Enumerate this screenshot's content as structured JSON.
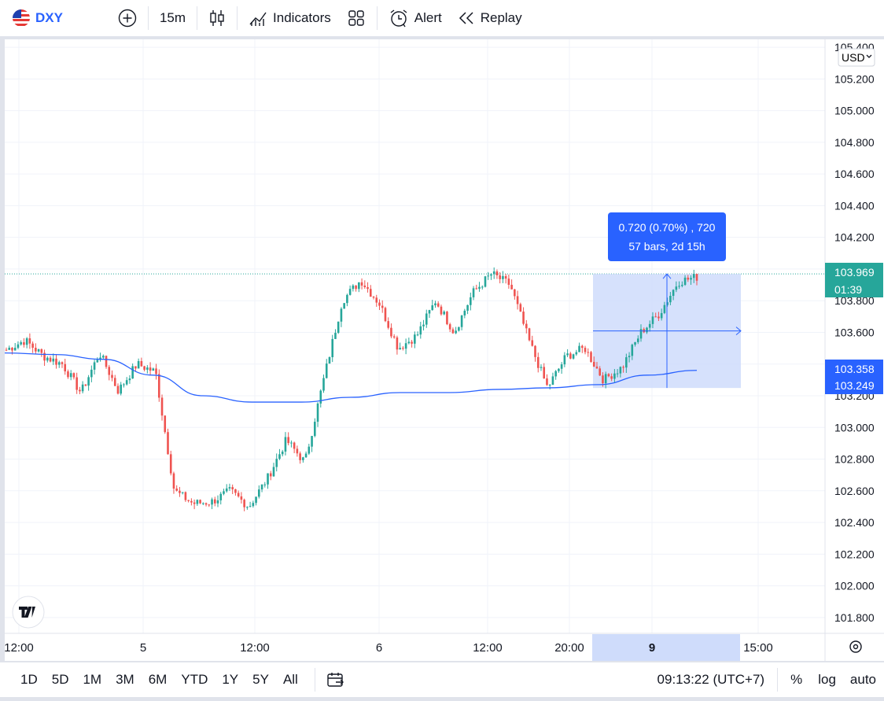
{
  "toolbar": {
    "symbol": "DXY",
    "interval": "15m",
    "indicators_label": "Indicators",
    "alert_label": "Alert",
    "replay_label": "Replay"
  },
  "currency": "USD",
  "price_axis": {
    "ticks": [
      "105.400",
      "105.200",
      "105.000",
      "104.800",
      "104.600",
      "104.400",
      "104.200",
      "104.000",
      "103.800",
      "103.600",
      "103.400",
      "103.200",
      "103.000",
      "102.800",
      "102.600",
      "102.400",
      "102.200",
      "102.000",
      "101.800"
    ],
    "last_price": "103.969",
    "countdown": "01:39",
    "range_high_label": "103.358",
    "range_low_label": "103.249"
  },
  "time_axis": {
    "ticks": [
      "12:00",
      "5",
      "12:00",
      "6",
      "12:00",
      "20:00",
      "9",
      "15:00"
    ]
  },
  "measure": {
    "line1": "0.720 (0.70%) , 720",
    "line2": "57 bars, 2d 15h"
  },
  "bottom": {
    "ranges": [
      "1D",
      "5D",
      "1M",
      "3M",
      "6M",
      "YTD",
      "1Y",
      "5Y",
      "All"
    ],
    "clock": "09:13:22 (UTC+7)",
    "percent": "%",
    "log": "log",
    "auto": "auto"
  },
  "colors": {
    "up": "#26a69a",
    "down": "#ef5350",
    "ma": "#2962ff",
    "accent": "#2962ff",
    "measure_fill": "#cfdcfb"
  },
  "chart_data": {
    "type": "candlestick",
    "symbol": "DXY",
    "interval": "15m",
    "ylim": [
      101.7,
      105.45
    ],
    "path_anchors": [
      [
        "day4 ~09:00",
        103.49
      ],
      [
        "day4 ~11:00",
        103.55
      ],
      [
        "day4 12:00",
        103.45
      ],
      [
        "day4 ~16:00",
        103.4
      ],
      [
        "day4 ~17:30",
        103.22
      ],
      [
        "day4 ~18:30",
        103.47
      ],
      [
        "day4 ~20:00",
        103.23
      ],
      [
        "day4 ~22:30",
        103.4
      ],
      [
        "day5 ~00:30",
        103.35
      ],
      [
        "day5 ~01:00",
        102.6
      ],
      [
        "day5 ~02:00",
        102.52
      ],
      [
        "day5 ~05:00",
        102.53
      ],
      [
        "day5 ~07:00",
        102.6
      ],
      [
        "day5 ~09:00",
        102.5
      ],
      [
        "day5 ~12:00",
        102.68
      ],
      [
        "day5 ~15:30",
        102.92
      ],
      [
        "day5 ~18:00",
        102.78
      ],
      [
        "day5 ~20:00",
        103.3
      ],
      [
        "day5 ~23:00",
        103.8
      ],
      [
        "day6 ~00:00",
        103.93
      ],
      [
        "day6 ~03:00",
        103.78
      ],
      [
        "day6 ~04:00",
        103.5
      ],
      [
        "day6 ~07:00",
        103.58
      ],
      [
        "day6 ~09:00",
        103.8
      ],
      [
        "day6 ~11:00",
        103.6
      ],
      [
        "day6 ~13:00",
        103.85
      ],
      [
        "day6 ~14:00",
        103.97
      ],
      [
        "day6 ~15:00",
        103.9
      ],
      [
        "day6 ~16:00",
        103.55
      ],
      [
        "day6 ~18:00",
        103.25
      ],
      [
        "day6 ~20:00",
        103.45
      ],
      [
        "day6 ~23:00",
        103.5
      ],
      [
        "day9 ~00:00",
        103.3
      ],
      [
        "day9 ~01:00",
        103.38
      ],
      [
        "day9 ~04:00",
        103.6
      ],
      [
        "day9 ~06:00",
        103.72
      ],
      [
        "day9 ~08:00",
        103.92
      ],
      [
        "day9 ~09:00",
        103.95
      ]
    ],
    "moving_average_approx": [
      103.47,
      103.46,
      103.43,
      103.33,
      103.2,
      103.16,
      103.16,
      103.19,
      103.22,
      103.22,
      103.24,
      103.25,
      103.27,
      103.33,
      103.36
    ],
    "measure": {
      "from_price": 103.249,
      "to_price": 103.969,
      "change": "0.720 (0.70%) , 720",
      "bars": "57 bars, 2d 15h"
    },
    "last_price": 103.969
  }
}
